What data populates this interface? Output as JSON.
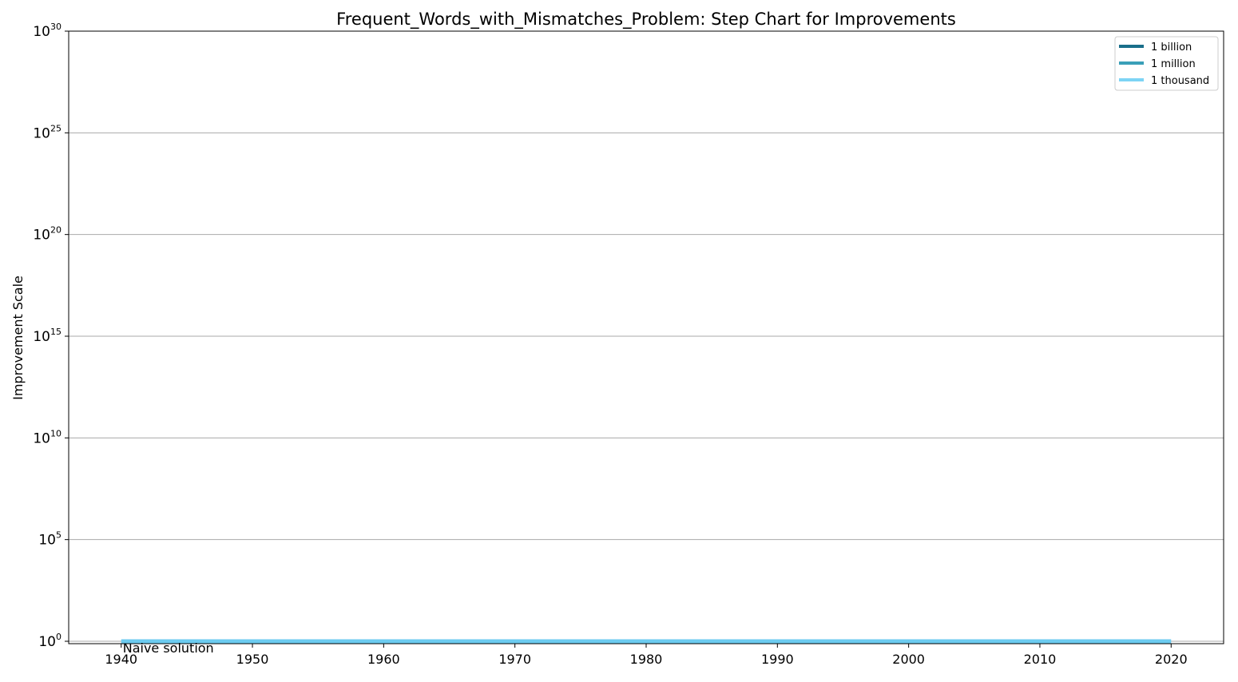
{
  "chart_data": {
    "type": "line",
    "title": "Frequent_Words_with_Mismatches_Problem: Step Chart for Improvements",
    "xlabel": "",
    "ylabel": "Improvement Scale",
    "x_range": [
      1936,
      2024
    ],
    "y_scale": "log",
    "y_range": [
      1,
      1e+30
    ],
    "x_ticks": [
      1940,
      1950,
      1960,
      1970,
      1980,
      1990,
      2000,
      2010,
      2020
    ],
    "y_ticks": [
      {
        "exponent": 0,
        "base": "10",
        "sup": "0"
      },
      {
        "exponent": 5,
        "base": "10",
        "sup": "5"
      },
      {
        "exponent": 10,
        "base": "10",
        "sup": "10"
      },
      {
        "exponent": 15,
        "base": "10",
        "sup": "15"
      },
      {
        "exponent": 20,
        "base": "10",
        "sup": "20"
      },
      {
        "exponent": 25,
        "base": "10",
        "sup": "25"
      },
      {
        "exponent": 30,
        "base": "10",
        "sup": "30"
      }
    ],
    "grid": "horizontal",
    "legend_position": "top-right",
    "legend": [
      {
        "label": "1 billion",
        "color": "#1a6f8a"
      },
      {
        "label": "1 million",
        "color": "#3a9fb8"
      },
      {
        "label": "1 thousand",
        "color": "#7dd4f5"
      }
    ],
    "series": [
      {
        "color": "#6ccbf0",
        "x": [
          1940,
          2020
        ],
        "y": [
          1,
          1
        ]
      }
    ],
    "annotations": [
      {
        "text": "Naive solution",
        "x": 1940,
        "y": 1
      }
    ]
  }
}
